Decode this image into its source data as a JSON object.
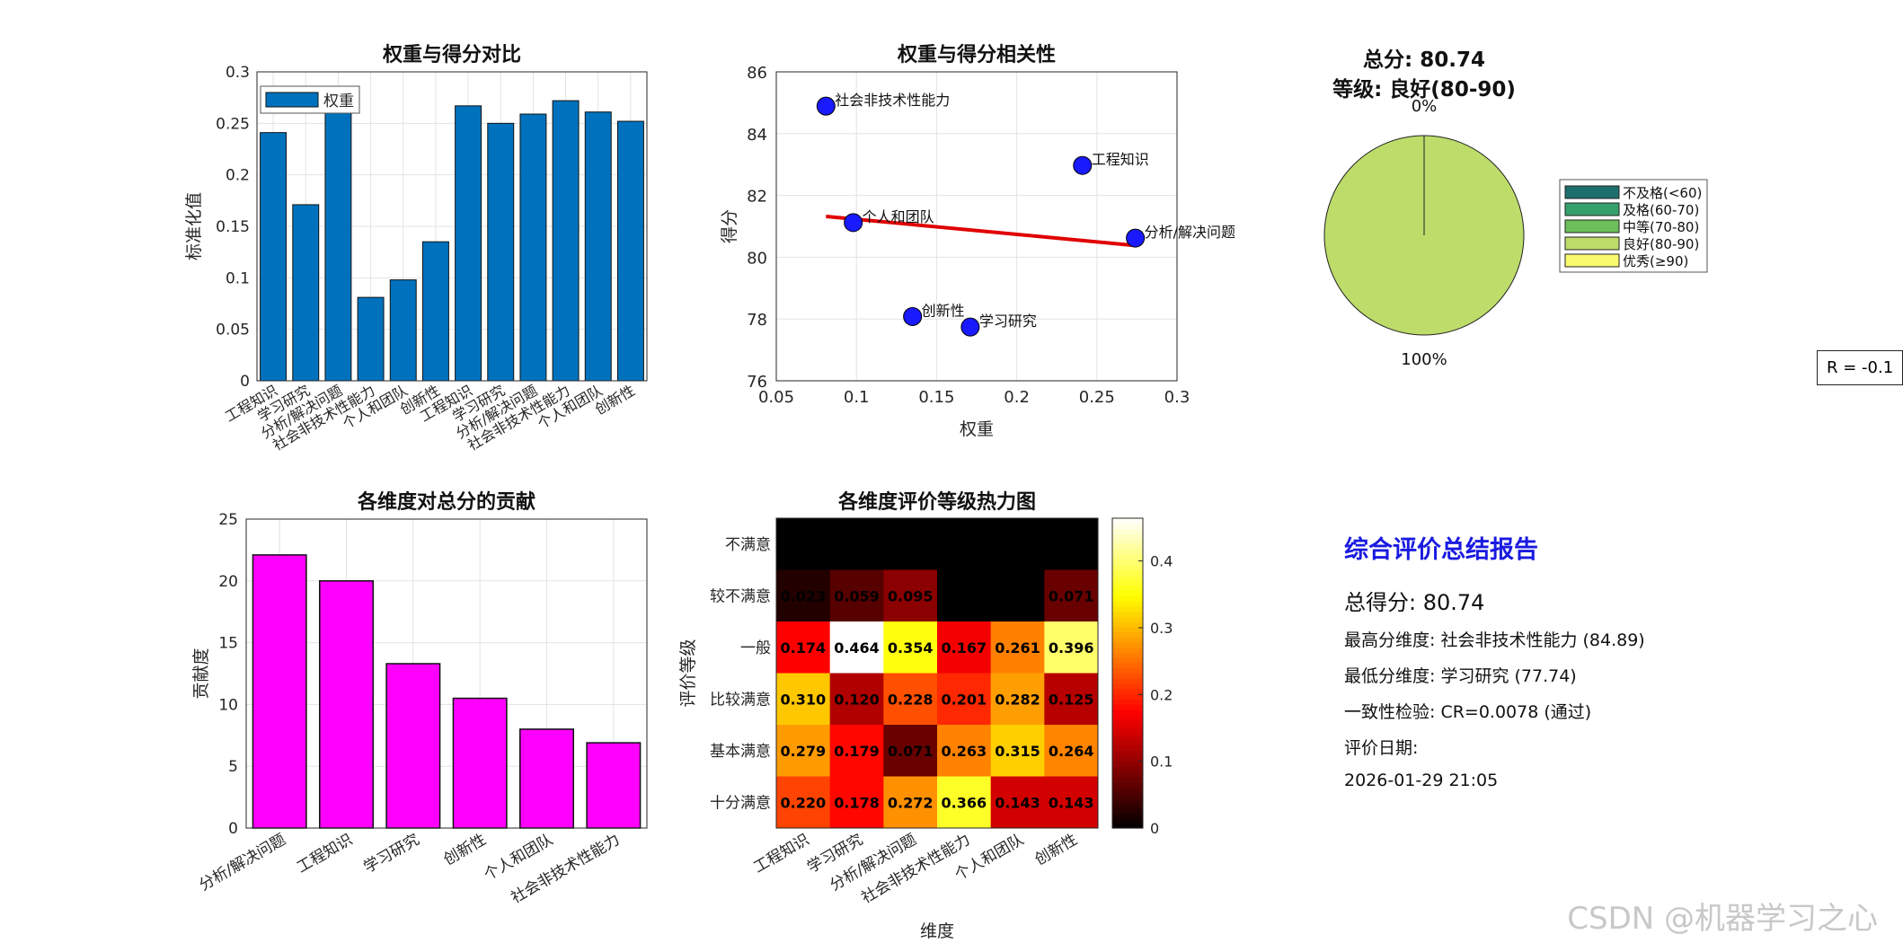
{
  "dims": [
    "工程知识",
    "学习研究",
    "分析/解决问题",
    "社会非技术性能力",
    "个人和团队",
    "创新性"
  ],
  "chart_data": [
    {
      "type": "bar",
      "title": "权重与得分对比",
      "ylabel": "标准化值",
      "legend": [
        "权重"
      ],
      "legend_position": "top-left",
      "ylim": [
        0,
        0.3
      ],
      "yticks": [
        0,
        0.05,
        0.1,
        0.15,
        0.2,
        0.25,
        0.3
      ],
      "categories": [
        "工程知识",
        "学习研究",
        "分析/解决问题",
        "社会非技术性能力",
        "个人和团队",
        "创新性",
        "工程知识",
        "学习研究",
        "分析/解决问题",
        "社会非技术性能力",
        "个人和团队",
        "创新性"
      ],
      "values": [
        0.241,
        0.171,
        0.274,
        0.081,
        0.098,
        0.135,
        0.267,
        0.25,
        0.259,
        0.272,
        0.261,
        0.252
      ],
      "color": "#0072bd",
      "grid": true
    },
    {
      "type": "scatter",
      "title": "权重与得分相关性",
      "xlabel": "权重",
      "ylabel": "得分",
      "xlim": [
        0.05,
        0.3
      ],
      "ylim": [
        76,
        86
      ],
      "xticks": [
        0.05,
        0.1,
        0.15,
        0.2,
        0.25,
        0.3
      ],
      "yticks": [
        76,
        78,
        80,
        82,
        84,
        86
      ],
      "points": [
        {
          "label": "社会非技术性能力",
          "x": 0.081,
          "y": 84.89
        },
        {
          "label": "工程知识",
          "x": 0.241,
          "y": 82.97
        },
        {
          "label": "个人和团队",
          "x": 0.098,
          "y": 81.12
        },
        {
          "label": "分析/解决问题",
          "x": 0.274,
          "y": 80.62
        },
        {
          "label": "创新性",
          "x": 0.135,
          "y": 78.08
        },
        {
          "label": "学习研究",
          "x": 0.171,
          "y": 77.74
        }
      ],
      "fit_line": [
        [
          0.081,
          81.32
        ],
        [
          0.274,
          80.38
        ]
      ],
      "fit_text": "R = -0.1",
      "point_color": "#1a1aff",
      "fit_color": "#e00000",
      "grid": true
    },
    {
      "type": "pie",
      "title_lines": [
        "总分: 80.74",
        "等级: 良好(80-90)"
      ],
      "slices": [
        {
          "label": "不及格(<60)",
          "value": 0,
          "color": "#1f6e6e"
        },
        {
          "label": "及格(60-70)",
          "value": 0,
          "color": "#36a06c"
        },
        {
          "label": "中等(70-80)",
          "value": 0,
          "color": "#6cbf5a"
        },
        {
          "label": "良好(80-90)",
          "value": 1,
          "color": "#bddc6a"
        },
        {
          "label": "优秀(≥90)",
          "value": 0,
          "color": "#fafa6e"
        }
      ],
      "slice_labels": [
        "0%",
        "100%"
      ],
      "legend_position": "right"
    },
    {
      "type": "bar",
      "title": "各维度对总分的贡献",
      "ylabel": "贡献度",
      "ylim": [
        0,
        25
      ],
      "yticks": [
        0,
        5,
        10,
        15,
        20,
        25
      ],
      "categories": [
        "分析/解决问题",
        "工程知识",
        "学习研究",
        "创新性",
        "个人和团队",
        "社会非技术性能力"
      ],
      "values": [
        22.1,
        20.0,
        13.3,
        10.5,
        8.0,
        6.9
      ],
      "color": "#ff00ff",
      "grid": true
    },
    {
      "type": "heatmap",
      "title": "各维度评价等级热力图",
      "xlabel": "维度",
      "ylabel": "评价等级",
      "columns": [
        "工程知识",
        "学习研究",
        "分析/解决问题",
        "社会非技术性能力",
        "个人和团队",
        "创新性"
      ],
      "rows": [
        "不满意",
        "较不满意",
        "一般",
        "比较满意",
        "基本满意",
        "十分满意"
      ],
      "values": [
        [
          0,
          0,
          0,
          0,
          0,
          0
        ],
        [
          0.023,
          0.059,
          0.095,
          0,
          0,
          0.071
        ],
        [
          0.174,
          0.464,
          0.354,
          0.167,
          0.261,
          0.396
        ],
        [
          0.31,
          0.12,
          0.228,
          0.201,
          0.282,
          0.125
        ],
        [
          0.279,
          0.179,
          0.071,
          0.263,
          0.315,
          0.264
        ],
        [
          0.22,
          0.178,
          0.272,
          0.366,
          0.143,
          0.143
        ]
      ],
      "cell_labels": [
        [
          "",
          "",
          "",
          "",
          "",
          ""
        ],
        [
          "0.023",
          "0.059",
          "0.095",
          "",
          "",
          "0.071"
        ],
        [
          "0.174",
          "0.464",
          "0.354",
          "0.167",
          "0.261",
          "0.396"
        ],
        [
          "0.310",
          "0.120",
          "0.228",
          "0.201",
          "0.282",
          "0.125"
        ],
        [
          "0.279",
          "0.179",
          "0.071",
          "0.263",
          "0.315",
          "0.264"
        ],
        [
          "0.220",
          "0.178",
          "0.272",
          "0.366",
          "0.143",
          "0.143"
        ]
      ],
      "colorbar_range": [
        0,
        0.464
      ],
      "colorbar_ticks": [
        0,
        0.1,
        0.2,
        0.3,
        0.4
      ],
      "colormap": "hot"
    }
  ],
  "report": {
    "title": "综合评价总结报告",
    "total": "总得分: 80.74",
    "highest": "最高分维度: 社会非技术性能力 (84.89)",
    "lowest": "最低分维度: 学习研究 (77.74)",
    "consistency": "一致性检验: CR=0.0078 (通过)",
    "date_label": "评价日期:",
    "date": "2026-01-29 21:05"
  },
  "watermark": "CSDN @机器学习之心"
}
